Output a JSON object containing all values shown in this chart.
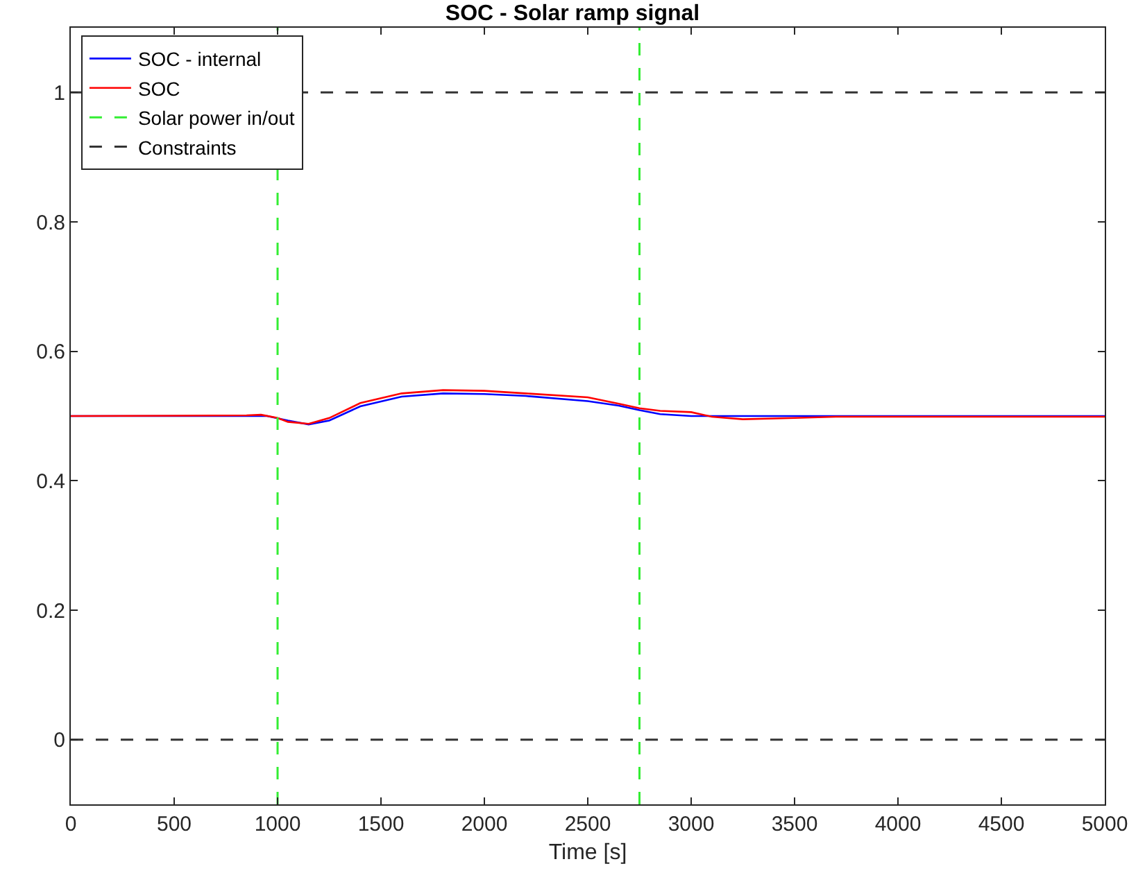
{
  "chart_data": {
    "type": "line",
    "title": "SOC - Solar ramp signal",
    "xlabel": "Time [s]",
    "xlim": [
      0,
      5000
    ],
    "ylim": [
      -0.1,
      1.1
    ],
    "xticks": [
      0,
      500,
      1000,
      1500,
      2000,
      2500,
      3000,
      3500,
      4000,
      4500,
      5000
    ],
    "yticks": [
      0,
      0.2,
      0.4,
      0.6,
      0.8,
      1
    ],
    "grid": false,
    "legend": "top left",
    "line_style": "solid",
    "marker": "none",
    "series": [
      {
        "name": "SOC - internal",
        "color": "#0000ff",
        "x": [
          0,
          850,
          950,
          1050,
          1150,
          1250,
          1400,
          1600,
          1800,
          2000,
          2200,
          2500,
          2650,
          2750,
          2850,
          3000,
          3500,
          4000,
          5000
        ],
        "values": [
          0.5,
          0.5,
          0.5,
          0.493,
          0.487,
          0.493,
          0.515,
          0.53,
          0.535,
          0.534,
          0.531,
          0.523,
          0.516,
          0.509,
          0.503,
          0.5,
          0.5,
          0.5,
          0.5
        ]
      },
      {
        "name": "SOC",
        "color": "#ff0000",
        "x": [
          0,
          850,
          920,
          1000,
          1050,
          1150,
          1250,
          1400,
          1600,
          1800,
          2000,
          2200,
          2500,
          2650,
          2750,
          2850,
          3000,
          3100,
          3250,
          3500,
          3700,
          4000,
          5000
        ],
        "values": [
          0.5,
          0.501,
          0.502,
          0.497,
          0.491,
          0.488,
          0.497,
          0.52,
          0.535,
          0.54,
          0.539,
          0.535,
          0.529,
          0.519,
          0.512,
          0.508,
          0.506,
          0.499,
          0.495,
          0.497,
          0.499,
          0.499,
          0.499
        ]
      }
    ],
    "ref_lines": [
      {
        "axis": "x",
        "value": 1000,
        "label": "Solar power in/out",
        "color": "#33ee33",
        "line_style": "dashed"
      },
      {
        "axis": "x",
        "value": 2750,
        "color": "#33ee33",
        "line_style": "dashed"
      },
      {
        "axis": "y",
        "value": 1,
        "label": "Constraints",
        "color": "#333333",
        "line_style": "dashed"
      },
      {
        "axis": "y",
        "value": 0,
        "color": "#333333",
        "line_style": "dashed"
      }
    ]
  }
}
